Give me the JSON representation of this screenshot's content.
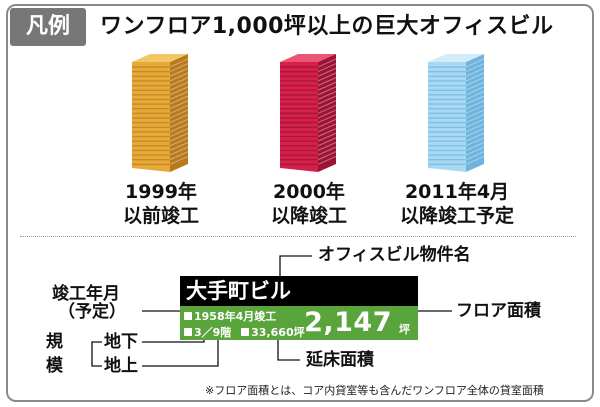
{
  "header": {
    "badge": "凡例",
    "title": "ワンフロア1,000坪以上の巨大オフィスビル"
  },
  "towers": [
    {
      "caption_line1": "1999年",
      "caption_line2": "以前竣工",
      "front": "#e8a93b",
      "side": "#b97a1b",
      "top": "#f2c76a",
      "window": "#c88a22"
    },
    {
      "caption_line1": "2000年",
      "caption_line2": "以降竣工",
      "front": "#d6204a",
      "side": "#9e1233",
      "top": "#ea5575",
      "window": "#a8163a"
    },
    {
      "caption_line1": "2011年4月",
      "caption_line2": "以降竣工予定",
      "front": "#a9d8f3",
      "side": "#6fb4de",
      "top": "#d3ecfa",
      "window": "#7fc0e6"
    }
  ],
  "sample": {
    "building_name": "大手町ビル",
    "completed": "1958年4月竣工",
    "floors": "3／9階",
    "total_area": "33,660坪",
    "floor_area": "2,147",
    "floor_area_unit": "坪"
  },
  "labels": {
    "property_name": "オフィスビル物件名",
    "completion_date": "竣工年月",
    "completion_planned": "（予定）",
    "scale_line1": "規",
    "scale_line2": "模",
    "underground": "地下",
    "aboveground": "地上",
    "floor_area": "フロア面積",
    "total_floor_area": "延床面積"
  },
  "footnote": "※フロア面積とは、コア内貸室等も含んだワンフロア全体の貸室面積"
}
